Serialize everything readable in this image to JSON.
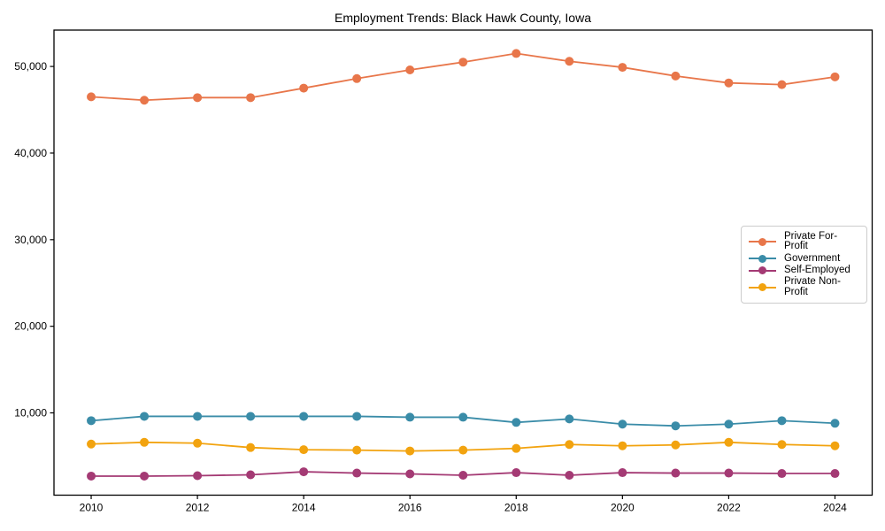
{
  "chart_data": {
    "type": "line",
    "title": "Employment Trends: Black Hawk County, Iowa",
    "x": [
      2010,
      2011,
      2012,
      2013,
      2014,
      2015,
      2016,
      2017,
      2018,
      2019,
      2020,
      2021,
      2022,
      2023,
      2024
    ],
    "series": [
      {
        "name": "Private For-Profit",
        "color": "#e8764a",
        "values": [
          46500,
          46100,
          46400,
          46400,
          47500,
          48600,
          49600,
          50500,
          51500,
          50600,
          49900,
          48900,
          48100,
          47900,
          48800
        ]
      },
      {
        "name": "Government",
        "color": "#3a8ca8",
        "values": [
          9100,
          9600,
          9600,
          9600,
          9600,
          9600,
          9500,
          9500,
          8900,
          9300,
          8700,
          8500,
          8700,
          9100,
          8800
        ]
      },
      {
        "name": "Self-Employed",
        "color": "#a43a74",
        "values": [
          2700,
          2700,
          2750,
          2850,
          3200,
          3050,
          2950,
          2800,
          3100,
          2800,
          3100,
          3050,
          3050,
          3000,
          3000
        ]
      },
      {
        "name": "Private Non-Profit",
        "color": "#f2a30f",
        "values": [
          6400,
          6600,
          6500,
          6000,
          5750,
          5700,
          5600,
          5700,
          5900,
          6350,
          6200,
          6300,
          6600,
          6350,
          6200
        ]
      }
    ],
    "xticks": [
      {
        "value": 2010,
        "label": "2010"
      },
      {
        "value": 2012,
        "label": "2012"
      },
      {
        "value": 2014,
        "label": "2014"
      },
      {
        "value": 2016,
        "label": "2016"
      },
      {
        "value": 2018,
        "label": "2018"
      },
      {
        "value": 2020,
        "label": "2020"
      },
      {
        "value": 2022,
        "label": "2022"
      },
      {
        "value": 2024,
        "label": "2024"
      }
    ],
    "yticks": [
      {
        "value": 10000,
        "label": "10,000"
      },
      {
        "value": 20000,
        "label": "20,000"
      },
      {
        "value": 30000,
        "label": "30,000"
      },
      {
        "value": 40000,
        "label": "40,000"
      },
      {
        "value": 50000,
        "label": "50,000"
      }
    ],
    "xlim": [
      2009.3,
      2024.7
    ],
    "ylim": [
      500,
      54200
    ],
    "grid": false,
    "legend_position": "center right",
    "axis_color": "#000000",
    "marker": "circle",
    "marker_radius": 5,
    "line_width": 1.8
  }
}
